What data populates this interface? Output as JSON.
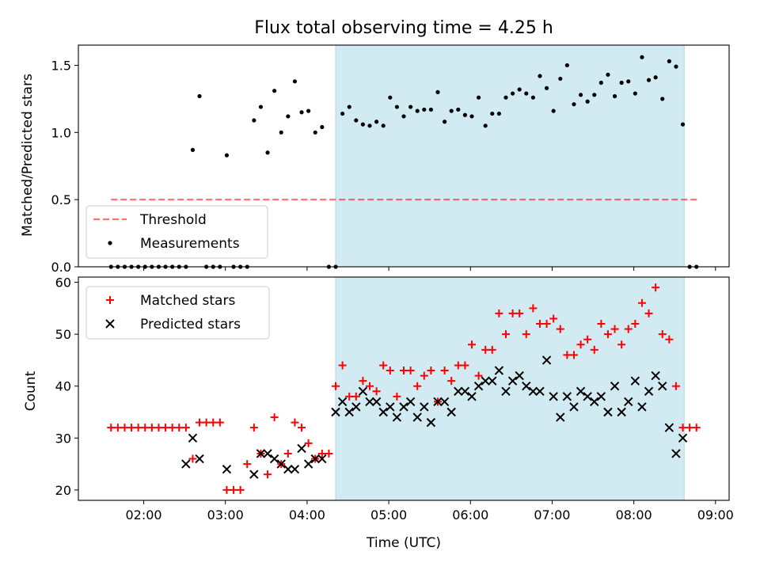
{
  "figure": {
    "title": "Flux total observing time = 4.25 h"
  },
  "colors": {
    "shade": "#add8e6",
    "threshold": "#ff0000",
    "measurement": "#000000",
    "matched": "#ff0000",
    "predicted": "#000000"
  },
  "chart_data": [
    {
      "type": "scatter",
      "ylabel": "Matched/Predicted stars",
      "ylim": [
        0,
        1.65
      ],
      "yticks": [
        "0.0",
        "0.5",
        "1.0",
        "1.5"
      ],
      "xlim": [
        "01:12",
        "09:10"
      ],
      "xtick_labels": [
        "02:00",
        "03:00",
        "04:00",
        "05:00",
        "06:00",
        "07:00",
        "08:00",
        "09:00"
      ],
      "shaded_interval": [
        "04:21",
        "08:37"
      ],
      "threshold": {
        "name": "Threshold",
        "value": 0.5,
        "x": [
          "01:36",
          "08:47"
        ]
      },
      "legend": {
        "position": "lower left",
        "entries": [
          "Threshold",
          "Measurements"
        ]
      },
      "series": [
        {
          "name": "Measurements",
          "x": [
            "01:36",
            "01:41",
            "01:46",
            "01:51",
            "01:56",
            "02:01",
            "02:06",
            "02:11",
            "02:16",
            "02:21",
            "02:26",
            "02:31",
            "02:36",
            "02:41",
            "02:46",
            "02:51",
            "02:56",
            "03:01",
            "03:06",
            "03:11",
            "03:16",
            "03:21",
            "03:26",
            "03:31",
            "03:36",
            "03:41",
            "03:46",
            "03:51",
            "03:56",
            "04:01",
            "04:06",
            "04:11",
            "04:16",
            "04:21",
            "04:26",
            "04:31",
            "04:36",
            "04:41",
            "04:46",
            "04:51",
            "04:56",
            "05:01",
            "05:06",
            "05:11",
            "05:16",
            "05:21",
            "05:26",
            "05:31",
            "05:36",
            "05:41",
            "05:46",
            "05:51",
            "05:56",
            "06:01",
            "06:06",
            "06:11",
            "06:16",
            "06:21",
            "06:26",
            "06:31",
            "06:36",
            "06:41",
            "06:46",
            "06:51",
            "06:56",
            "07:01",
            "07:06",
            "07:11",
            "07:16",
            "07:21",
            "07:26",
            "07:31",
            "07:36",
            "07:41",
            "07:46",
            "07:51",
            "07:56",
            "08:01",
            "08:06",
            "08:11",
            "08:16",
            "08:21",
            "08:26",
            "08:31",
            "08:36",
            "08:41",
            "08:46"
          ],
          "y": [
            0,
            0,
            0,
            0,
            0,
            0,
            0,
            0,
            0,
            0,
            0,
            0,
            0.87,
            1.27,
            0,
            0,
            0,
            0.83,
            0,
            0,
            0,
            1.09,
            1.19,
            0.85,
            1.31,
            1.0,
            1.12,
            1.38,
            1.15,
            1.16,
            1.0,
            1.04,
            0,
            0,
            1.14,
            1.19,
            1.09,
            1.06,
            1.05,
            1.08,
            1.05,
            1.26,
            1.19,
            1.12,
            1.19,
            1.16,
            1.17,
            1.17,
            1.3,
            1.08,
            1.16,
            1.17,
            1.13,
            1.12,
            1.26,
            1.05,
            1.14,
            1.14,
            1.26,
            1.29,
            1.32,
            1.29,
            1.26,
            1.42,
            1.33,
            1.16,
            1.4,
            1.5,
            1.21,
            1.28,
            1.23,
            1.28,
            1.37,
            1.43,
            1.27,
            1.37,
            1.38,
            1.29,
            1.56,
            1.39,
            1.41,
            1.25,
            1.53,
            1.49,
            1.06,
            0,
            0
          ]
        }
      ]
    },
    {
      "type": "scatter",
      "xlabel": "Time (UTC)",
      "ylabel": "Count",
      "ylim": [
        18,
        61
      ],
      "yticks": [
        "20",
        "30",
        "40",
        "50",
        "60"
      ],
      "xlim": [
        "01:12",
        "09:10"
      ],
      "xtick_labels": [
        "02:00",
        "03:00",
        "04:00",
        "05:00",
        "06:00",
        "07:00",
        "08:00",
        "09:00"
      ],
      "shaded_interval": [
        "04:21",
        "08:37"
      ],
      "legend": {
        "position": "upper left",
        "entries": [
          "Matched stars",
          "Predicted stars"
        ]
      },
      "series": [
        {
          "name": "Matched stars",
          "marker": "+",
          "x": [
            "01:36",
            "01:41",
            "01:46",
            "01:51",
            "01:56",
            "02:01",
            "02:06",
            "02:11",
            "02:16",
            "02:21",
            "02:26",
            "02:31",
            "02:36",
            "02:41",
            "02:46",
            "02:51",
            "02:56",
            "03:01",
            "03:06",
            "03:11",
            "03:16",
            "03:21",
            "03:26",
            "03:31",
            "03:36",
            "03:41",
            "03:46",
            "03:51",
            "03:56",
            "04:01",
            "04:06",
            "04:11",
            "04:16",
            "04:21",
            "04:26",
            "04:31",
            "04:36",
            "04:41",
            "04:46",
            "04:51",
            "04:56",
            "05:01",
            "05:06",
            "05:11",
            "05:16",
            "05:21",
            "05:26",
            "05:31",
            "05:36",
            "05:41",
            "05:46",
            "05:51",
            "05:56",
            "06:01",
            "06:06",
            "06:11",
            "06:16",
            "06:21",
            "06:26",
            "06:31",
            "06:36",
            "06:41",
            "06:46",
            "06:51",
            "06:56",
            "07:01",
            "07:06",
            "07:11",
            "07:16",
            "07:21",
            "07:26",
            "07:31",
            "07:36",
            "07:41",
            "07:46",
            "07:51",
            "07:56",
            "08:01",
            "08:06",
            "08:11",
            "08:16",
            "08:21",
            "08:26",
            "08:31",
            "08:36",
            "08:41",
            "08:46"
          ],
          "y": [
            32,
            32,
            32,
            32,
            32,
            32,
            32,
            32,
            32,
            32,
            32,
            32,
            26,
            33,
            33,
            33,
            33,
            20,
            20,
            20,
            25,
            32,
            27,
            23,
            34,
            25,
            27,
            33,
            32,
            29,
            26,
            27,
            27,
            40,
            44,
            38,
            38,
            41,
            40,
            39,
            44,
            43,
            38,
            43,
            43,
            40,
            42,
            43,
            37,
            43,
            41,
            44,
            44,
            48,
            42,
            47,
            47,
            54,
            50,
            54,
            54,
            50,
            55,
            52,
            52,
            53,
            51,
            46,
            46,
            48,
            49,
            47,
            52,
            50,
            51,
            48,
            51,
            52,
            56,
            54,
            59,
            50,
            49,
            40,
            32,
            32,
            32
          ]
        },
        {
          "name": "Predicted stars",
          "marker": "x",
          "x": [
            "02:31",
            "02:36",
            "02:41",
            "03:01",
            "03:21",
            "03:26",
            "03:31",
            "03:36",
            "03:41",
            "03:46",
            "03:51",
            "03:56",
            "04:01",
            "04:06",
            "04:11",
            "04:21",
            "04:26",
            "04:31",
            "04:36",
            "04:41",
            "04:46",
            "04:51",
            "04:56",
            "05:01",
            "05:06",
            "05:11",
            "05:16",
            "05:21",
            "05:26",
            "05:31",
            "05:36",
            "05:41",
            "05:46",
            "05:51",
            "05:56",
            "06:01",
            "06:06",
            "06:11",
            "06:16",
            "06:21",
            "06:26",
            "06:31",
            "06:36",
            "06:41",
            "06:46",
            "06:51",
            "06:56",
            "07:01",
            "07:06",
            "07:11",
            "07:16",
            "07:21",
            "07:26",
            "07:31",
            "07:36",
            "07:41",
            "07:46",
            "07:51",
            "07:56",
            "08:01",
            "08:06",
            "08:11",
            "08:16",
            "08:21",
            "08:26",
            "08:31",
            "08:36"
          ],
          "y": [
            25,
            30,
            26,
            24,
            23,
            27,
            27,
            26,
            25,
            24,
            24,
            28,
            25,
            26,
            26,
            35,
            37,
            35,
            36,
            39,
            37,
            37,
            35,
            36,
            34,
            36,
            37,
            34,
            36,
            33,
            37,
            37,
            35,
            39,
            39,
            38,
            40,
            41,
            41,
            43,
            39,
            41,
            42,
            40,
            39,
            39,
            45,
            38,
            34,
            38,
            36,
            39,
            38,
            37,
            38,
            35,
            40,
            35,
            37,
            41,
            36,
            39,
            42,
            40,
            32,
            27,
            30
          ]
        }
      ]
    }
  ]
}
